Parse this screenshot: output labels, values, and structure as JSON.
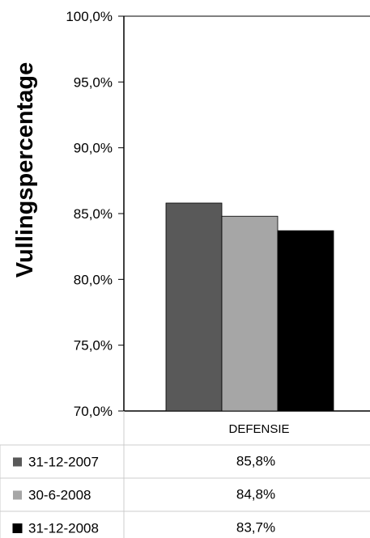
{
  "chart_data": {
    "type": "bar",
    "title": "",
    "xlabel": "",
    "ylabel": "Vullingspercentage",
    "categories": [
      "DEFENSIE"
    ],
    "ylim": [
      70.0,
      100.0
    ],
    "y_ticks": [
      "70,0%",
      "75,0%",
      "80,0%",
      "85,0%",
      "90,0%",
      "95,0%",
      "100,0%"
    ],
    "y_tick_values": [
      70,
      75,
      80,
      85,
      90,
      95,
      100
    ],
    "grid": false,
    "legend": "data-table-below",
    "series": [
      {
        "name": "31-12-2007",
        "values": [
          85.8
        ],
        "label": "85,8%",
        "color": "#595959"
      },
      {
        "name": "30-6-2008",
        "values": [
          84.8
        ],
        "label": "84,8%",
        "color": "#a6a6a6"
      },
      {
        "name": "31-12-2008",
        "values": [
          83.7
        ],
        "label": "83,7%",
        "color": "#000000"
      }
    ]
  }
}
